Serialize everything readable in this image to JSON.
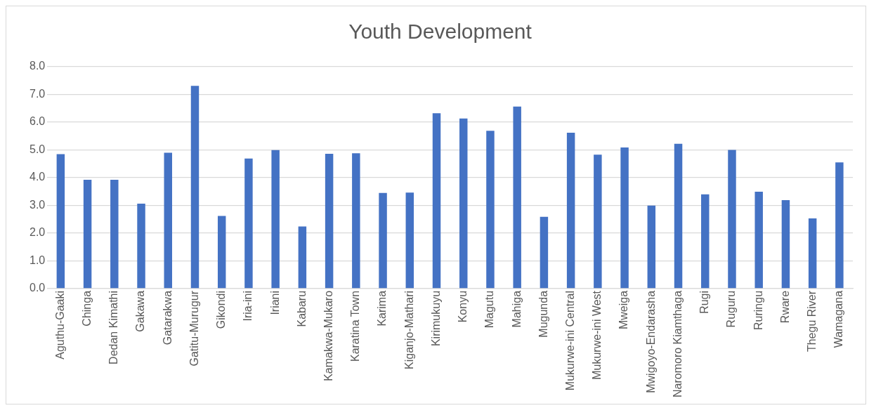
{
  "chart_data": {
    "type": "bar",
    "title": "Youth Development",
    "categories": [
      "Aguthu-Gaaki",
      "Chinga",
      "Dedan Kimathi",
      "Gakawa",
      "Gatarakwa",
      "Gatitu-Murugur",
      "Gikondi",
      "Iria-ini",
      "Iriani",
      "Kabaru",
      "Kamakwa-Mukaro",
      "Karatina Town",
      "Karima",
      "Kiganjo-Mathari",
      "Kirimukuyu",
      "Konyu",
      "Magutu",
      "Mahiga",
      "Mugunda",
      "Mukurwe-ini Central",
      "Mukurwe-ini West",
      "Mweiga",
      "Mwigoyo-Endarasha",
      "Naromoro Kiamthaga",
      "Rugi",
      "Ruguru",
      "Ruringu",
      "Rware",
      "Thegu River",
      "Wamagana"
    ],
    "values": [
      4.85,
      3.92,
      3.92,
      3.06,
      4.9,
      7.31,
      2.62,
      4.69,
      4.99,
      2.24,
      4.86,
      4.88,
      3.45,
      3.46,
      6.32,
      6.13,
      5.69,
      6.56,
      2.59,
      5.62,
      4.83,
      5.09,
      2.99,
      5.22,
      3.4,
      5.0,
      3.49,
      3.19,
      2.53,
      4.55
    ],
    "color": "#4472c4",
    "ylim": [
      0,
      8
    ],
    "yticks": [
      {
        "value": 0,
        "label": "0.0"
      },
      {
        "value": 1,
        "label": "1.0"
      },
      {
        "value": 2,
        "label": "2.0"
      },
      {
        "value": 3,
        "label": "3.0"
      },
      {
        "value": 4,
        "label": "4.0"
      },
      {
        "value": 5,
        "label": "5.0"
      },
      {
        "value": 6,
        "label": "6.0"
      },
      {
        "value": 7,
        "label": "7.0"
      },
      {
        "value": 8,
        "label": "8.0"
      }
    ],
    "grid": "y",
    "legend": false
  }
}
